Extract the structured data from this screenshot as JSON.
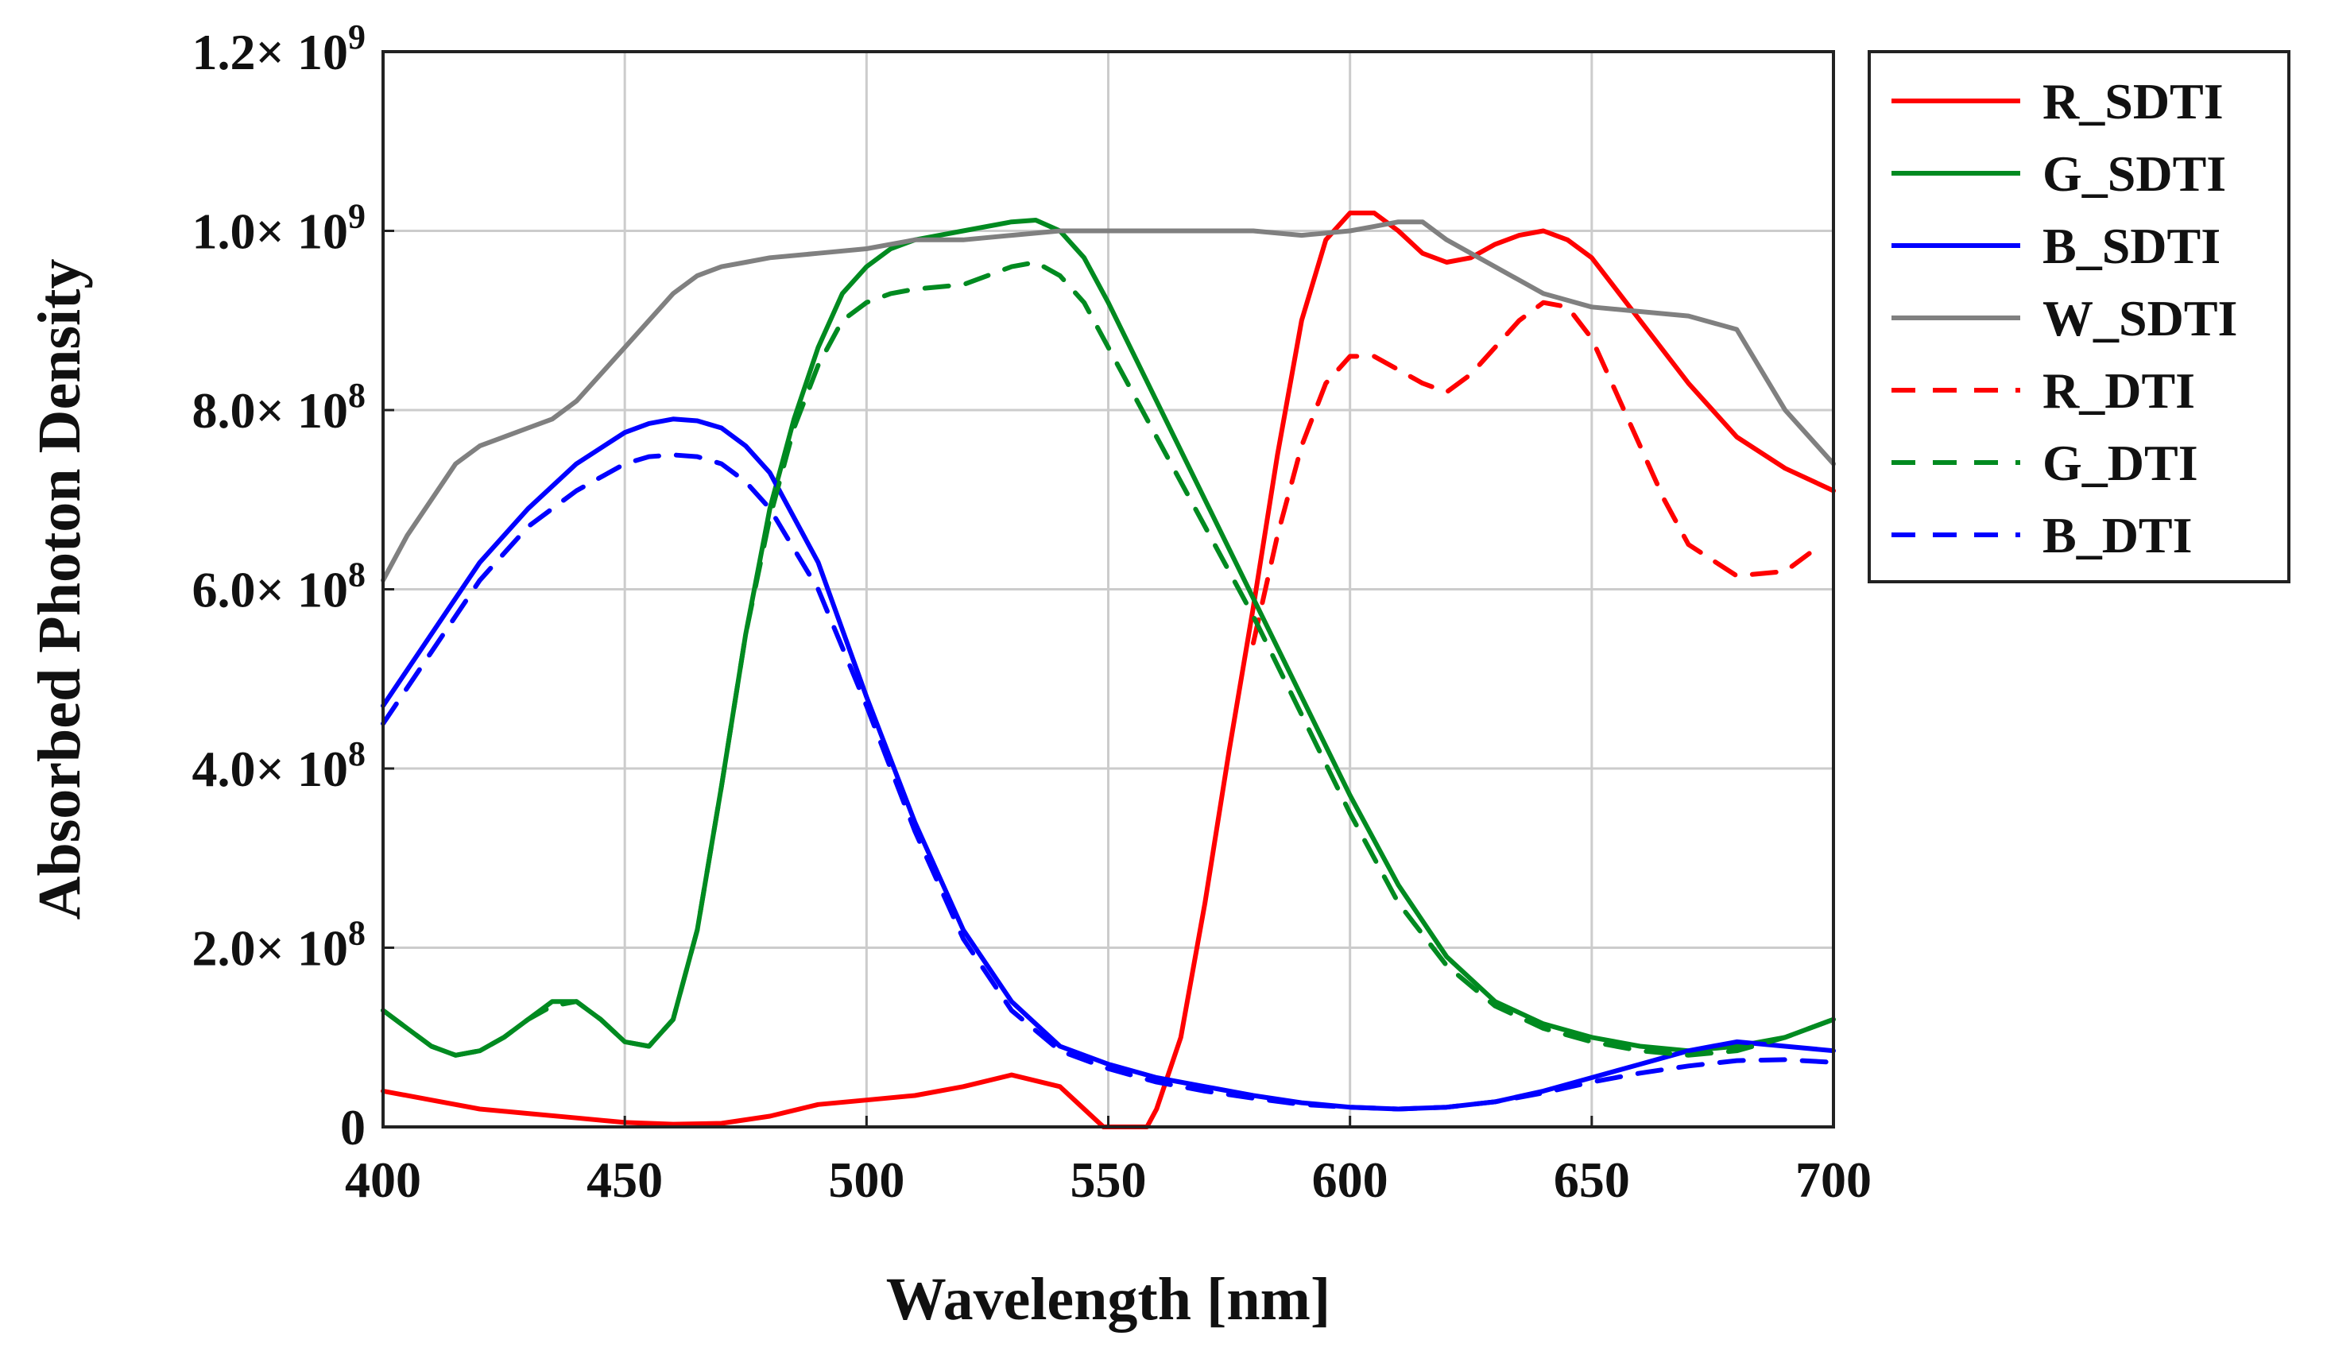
{
  "chart_data": {
    "type": "line",
    "xlabel": "Wavelength [nm]",
    "ylabel": "Absorbed Photon Density",
    "xlim": [
      400,
      700
    ],
    "ylim": [
      0,
      1200000000
    ],
    "grid": true,
    "legend_position": "right",
    "x_ticks": [
      {
        "value": 400,
        "label": "400"
      },
      {
        "value": 450,
        "label": "450"
      },
      {
        "value": 500,
        "label": "500"
      },
      {
        "value": 550,
        "label": "550"
      },
      {
        "value": 600,
        "label": "600"
      },
      {
        "value": 650,
        "label": "650"
      },
      {
        "value": 700,
        "label": "700"
      }
    ],
    "y_ticks": [
      {
        "value": 0,
        "mant": "0",
        "exp": ""
      },
      {
        "value": 200000000,
        "mant": "2.0× 10",
        "exp": "8"
      },
      {
        "value": 400000000,
        "mant": "4.0× 10",
        "exp": "8"
      },
      {
        "value": 600000000,
        "mant": "6.0× 10",
        "exp": "8"
      },
      {
        "value": 800000000,
        "mant": "8.0× 10",
        "exp": "8"
      },
      {
        "value": 1000000000,
        "mant": "1.0× 10",
        "exp": "9"
      },
      {
        "value": 1200000000,
        "mant": "1.2× 10",
        "exp": "9"
      }
    ],
    "series": [
      {
        "name": "R_SDTI",
        "color": "#ff0000",
        "dash": false,
        "x": [
          400,
          410,
          420,
          430,
          440,
          450,
          460,
          470,
          480,
          490,
          500,
          510,
          520,
          530,
          540,
          545,
          549,
          555,
          558,
          560,
          565,
          570,
          575,
          580,
          585,
          590,
          595,
          600,
          605,
          610,
          615,
          620,
          625,
          630,
          635,
          640,
          645,
          650,
          660,
          670,
          680,
          690,
          700
        ],
        "y": [
          0.04,
          0.03,
          0.02,
          0.015,
          0.01,
          0.005,
          0.003,
          0.004,
          0.012,
          0.025,
          0.03,
          0.035,
          0.045,
          0.058,
          0.045,
          0.02,
          0.0,
          0.0,
          0.0,
          0.02,
          0.1,
          0.25,
          0.42,
          0.58,
          0.75,
          0.9,
          0.99,
          1.02,
          1.02,
          1.0,
          0.975,
          0.965,
          0.97,
          0.985,
          0.995,
          1.0,
          0.99,
          0.97,
          0.9,
          0.83,
          0.77,
          0.735,
          0.71
        ]
      },
      {
        "name": "G_SDTI",
        "color": "#008a20",
        "dash": false,
        "x": [
          400,
          405,
          410,
          415,
          420,
          425,
          430,
          435,
          440,
          445,
          450,
          455,
          460,
          465,
          470,
          475,
          480,
          485,
          490,
          495,
          500,
          505,
          510,
          520,
          530,
          535,
          540,
          545,
          550,
          560,
          570,
          580,
          590,
          600,
          610,
          620,
          630,
          640,
          650,
          660,
          670,
          680,
          690,
          700
        ],
        "y": [
          0.13,
          0.11,
          0.09,
          0.08,
          0.085,
          0.1,
          0.12,
          0.14,
          0.14,
          0.12,
          0.095,
          0.09,
          0.12,
          0.22,
          0.38,
          0.55,
          0.69,
          0.79,
          0.87,
          0.93,
          0.96,
          0.98,
          0.99,
          1.0,
          1.01,
          1.012,
          1.0,
          0.97,
          0.92,
          0.81,
          0.7,
          0.59,
          0.48,
          0.37,
          0.27,
          0.19,
          0.14,
          0.115,
          0.1,
          0.09,
          0.085,
          0.09,
          0.1,
          0.12
        ]
      },
      {
        "name": "B_SDTI",
        "color": "#0000ff",
        "dash": false,
        "x": [
          400,
          410,
          420,
          430,
          440,
          450,
          455,
          460,
          465,
          470,
          475,
          480,
          490,
          500,
          510,
          520,
          530,
          540,
          550,
          560,
          570,
          580,
          590,
          600,
          610,
          620,
          630,
          640,
          650,
          660,
          670,
          680,
          690,
          700
        ],
        "y": [
          0.47,
          0.55,
          0.63,
          0.69,
          0.74,
          0.775,
          0.785,
          0.79,
          0.788,
          0.78,
          0.76,
          0.73,
          0.63,
          0.48,
          0.34,
          0.22,
          0.14,
          0.09,
          0.07,
          0.055,
          0.045,
          0.035,
          0.027,
          0.022,
          0.02,
          0.022,
          0.028,
          0.04,
          0.055,
          0.07,
          0.085,
          0.095,
          0.09,
          0.085
        ]
      },
      {
        "name": "W_SDTI",
        "color": "#808080",
        "dash": false,
        "x": [
          400,
          405,
          410,
          415,
          420,
          425,
          430,
          435,
          440,
          445,
          450,
          455,
          460,
          465,
          470,
          475,
          480,
          490,
          500,
          510,
          520,
          530,
          540,
          550,
          560,
          570,
          580,
          590,
          600,
          605,
          610,
          615,
          620,
          630,
          640,
          650,
          660,
          670,
          680,
          690,
          700
        ],
        "y": [
          0.61,
          0.66,
          0.7,
          0.74,
          0.76,
          0.77,
          0.78,
          0.79,
          0.81,
          0.84,
          0.87,
          0.9,
          0.93,
          0.95,
          0.96,
          0.965,
          0.97,
          0.975,
          0.98,
          0.99,
          0.99,
          0.995,
          1.0,
          1.0,
          1.0,
          1.0,
          1.0,
          0.995,
          1.0,
          1.005,
          1.01,
          1.01,
          0.99,
          0.96,
          0.93,
          0.915,
          0.91,
          0.905,
          0.89,
          0.8,
          0.74
        ]
      },
      {
        "name": "R_DTI",
        "color": "#ff0000",
        "dash": true,
        "x": [
          580,
          585,
          590,
          595,
          600,
          605,
          610,
          615,
          620,
          625,
          630,
          635,
          640,
          645,
          650,
          655,
          660,
          665,
          670,
          680,
          690,
          695
        ],
        "y": [
          0.54,
          0.66,
          0.76,
          0.83,
          0.86,
          0.86,
          0.845,
          0.83,
          0.82,
          0.84,
          0.87,
          0.9,
          0.92,
          0.915,
          0.88,
          0.82,
          0.76,
          0.7,
          0.65,
          0.615,
          0.62,
          0.64
        ]
      },
      {
        "name": "G_DTI",
        "color": "#008a20",
        "dash": true,
        "x": [
          400,
          405,
          410,
          415,
          420,
          425,
          430,
          435,
          440,
          445,
          450,
          455,
          460,
          465,
          470,
          475,
          480,
          485,
          490,
          495,
          500,
          505,
          510,
          520,
          530,
          535,
          540,
          545,
          550,
          560,
          570,
          580,
          590,
          600,
          610,
          620,
          630,
          640,
          650,
          660,
          670,
          680,
          690,
          700
        ],
        "y": [
          0.13,
          0.11,
          0.09,
          0.08,
          0.085,
          0.1,
          0.12,
          0.135,
          0.14,
          0.12,
          0.095,
          0.09,
          0.12,
          0.22,
          0.38,
          0.55,
          0.68,
          0.78,
          0.85,
          0.9,
          0.92,
          0.93,
          0.935,
          0.94,
          0.96,
          0.965,
          0.95,
          0.92,
          0.87,
          0.77,
          0.67,
          0.57,
          0.46,
          0.35,
          0.25,
          0.18,
          0.135,
          0.11,
          0.095,
          0.085,
          0.08,
          0.085,
          0.1,
          0.12
        ]
      },
      {
        "name": "B_DTI",
        "color": "#0000ff",
        "dash": true,
        "x": [
          400,
          410,
          420,
          430,
          440,
          450,
          455,
          460,
          465,
          470,
          475,
          480,
          490,
          500,
          510,
          520,
          530,
          540,
          550,
          560,
          570,
          580,
          590,
          600,
          610,
          620,
          630,
          640,
          650,
          660,
          670,
          680,
          690,
          700
        ],
        "y": [
          0.45,
          0.53,
          0.61,
          0.67,
          0.71,
          0.74,
          0.748,
          0.75,
          0.748,
          0.74,
          0.72,
          0.69,
          0.6,
          0.47,
          0.33,
          0.21,
          0.13,
          0.085,
          0.065,
          0.05,
          0.04,
          0.032,
          0.025,
          0.022,
          0.02,
          0.022,
          0.028,
          0.038,
          0.05,
          0.06,
          0.068,
          0.074,
          0.075,
          0.072
        ]
      }
    ]
  }
}
